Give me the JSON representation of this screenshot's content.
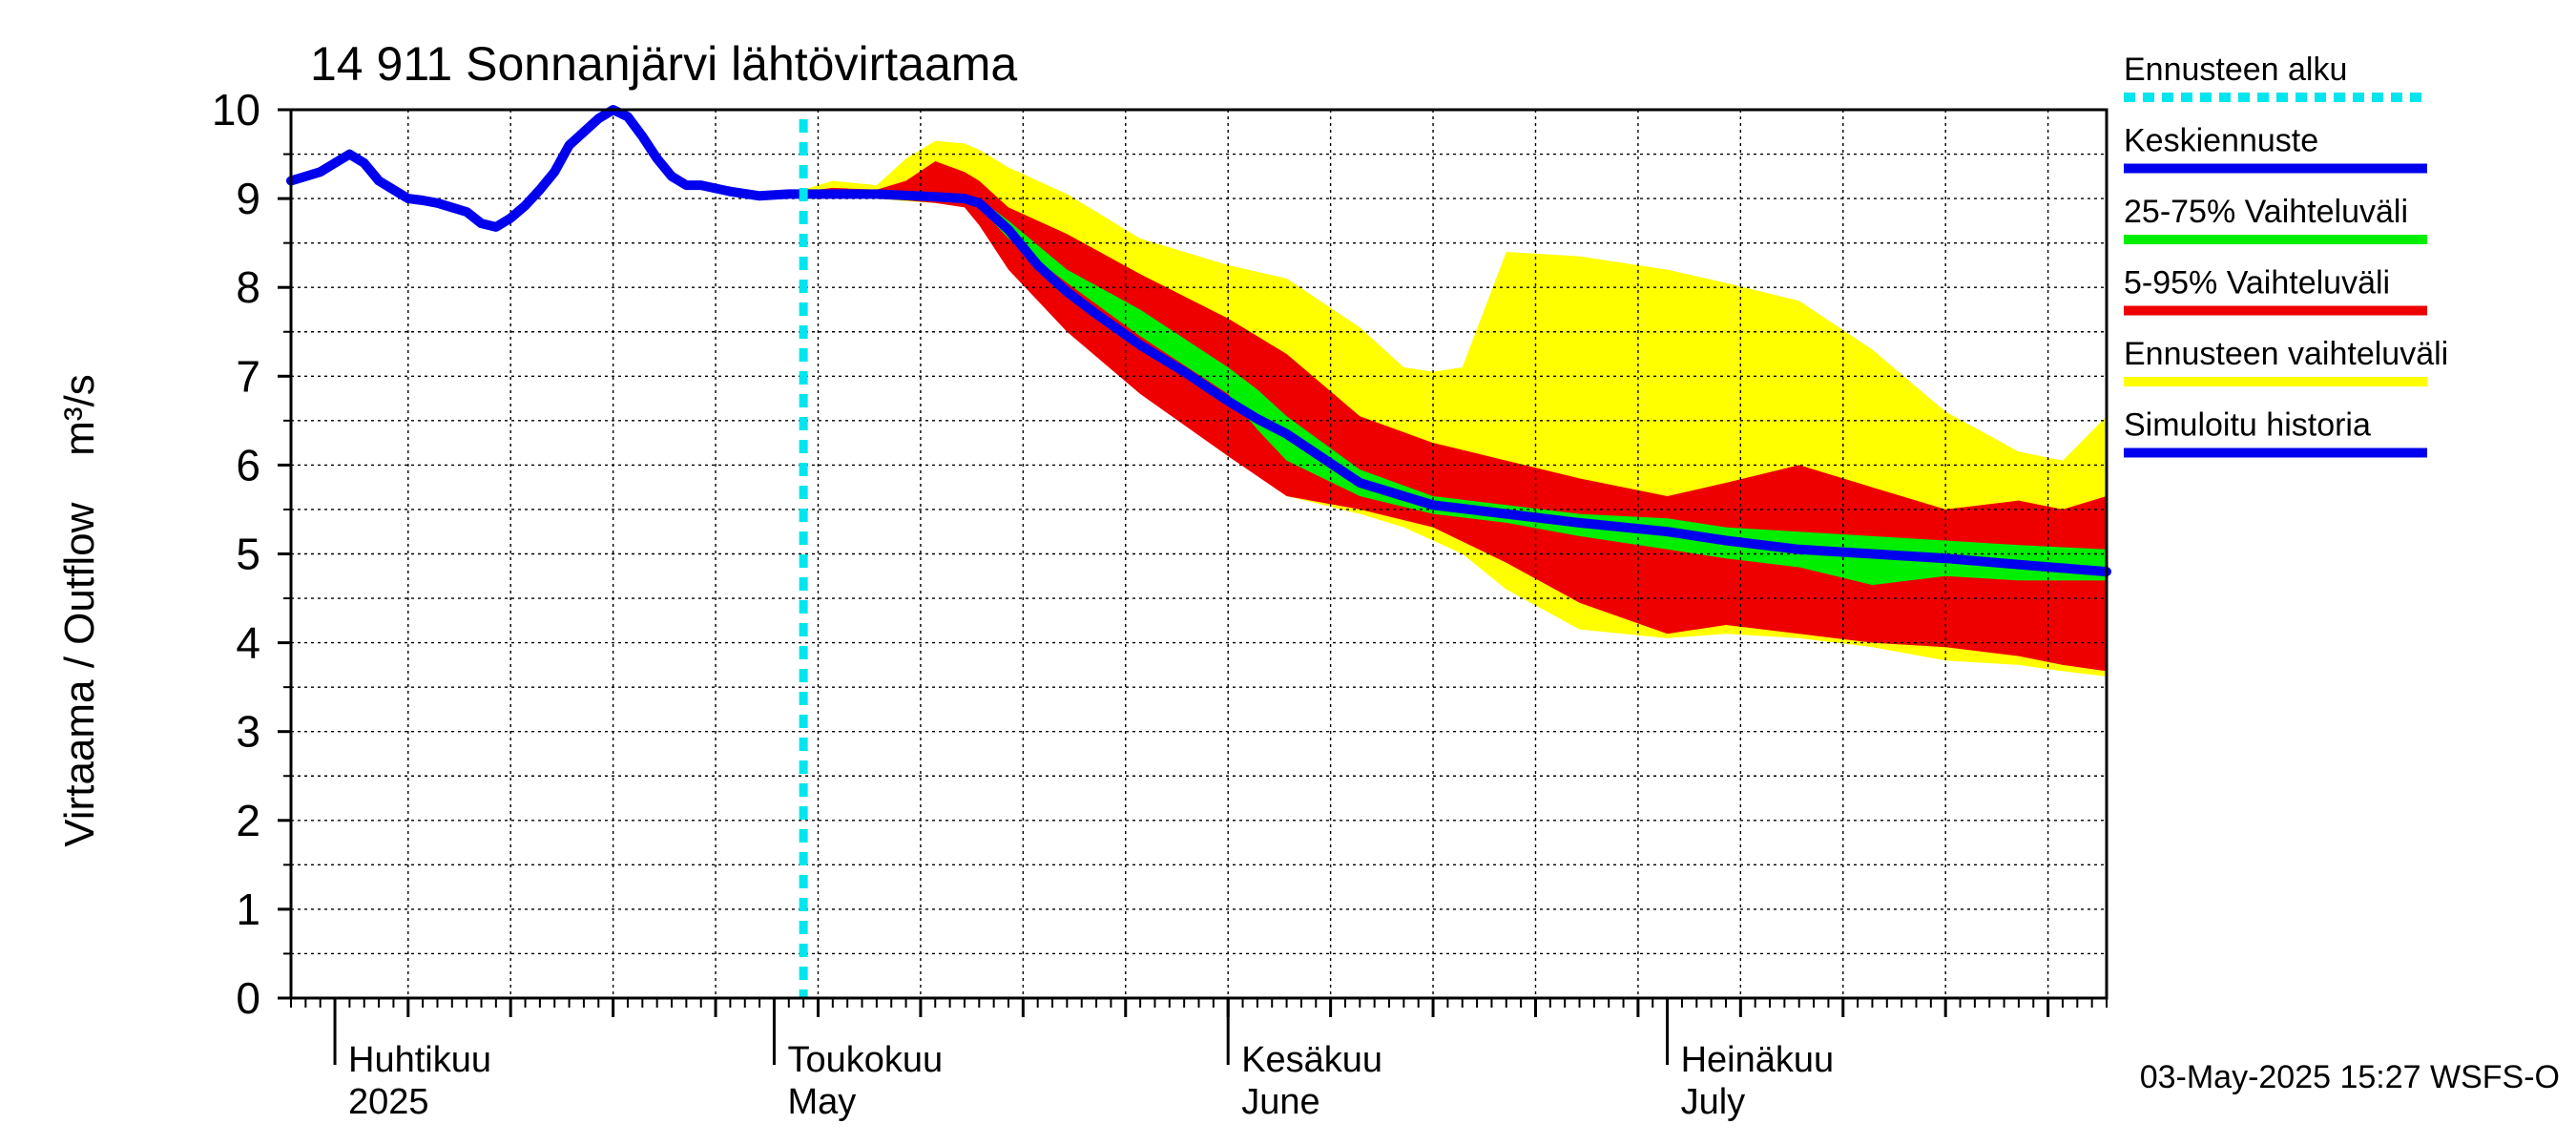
{
  "chart_data": {
    "type": "area",
    "title": "14 911 Sonnanjärvi lähtövirtaama",
    "ylabel": "Virtaama / Outflow    m³/s",
    "ylim": [
      0,
      10
    ],
    "yticks": [
      "0",
      "1",
      "2",
      "3",
      "4",
      "5",
      "6",
      "7",
      "8",
      "9",
      "10"
    ],
    "xlim": [
      "2025-03-29",
      "2025-07-31"
    ],
    "x_month_labels": [
      {
        "date": "2025-04-01",
        "fi": "Huhtikuu",
        "en": "2025"
      },
      {
        "date": "2025-05-01",
        "fi": "Toukokuu",
        "en": "May"
      },
      {
        "date": "2025-06-01",
        "fi": "Kesäkuu",
        "en": "June"
      },
      {
        "date": "2025-07-01",
        "fi": "Heinäkuu",
        "en": "July"
      }
    ],
    "grid": true,
    "legend_placement": "right",
    "forecast_start": "2025-05-03",
    "timestamp": "03-May-2025 15:27 WSFS-O",
    "legend": [
      {
        "label": "Ennusteen alku",
        "color": "#00e5ee",
        "style": "dashed"
      },
      {
        "label": "Keskiennuste",
        "color": "#0000ee",
        "style": "solid"
      },
      {
        "label": "25-75% Vaihteluväli",
        "color": "#00ee00",
        "style": "solid"
      },
      {
        "label": "5-95% Vaihteluväli",
        "color": "#ee0000",
        "style": "solid"
      },
      {
        "label": "Ennusteen vaihteluväli",
        "color": "#ffff00",
        "style": "solid"
      },
      {
        "label": "Simuloitu historia",
        "color": "#0000ee",
        "style": "solid"
      }
    ],
    "colors": {
      "history": "#0000ee",
      "median": "#0000ee",
      "band_25_75": "#00ee00",
      "band_5_95": "#ee0000",
      "band_full": "#ffff00",
      "forecast_start": "#00e5ee"
    },
    "series": [
      {
        "name": "Simuloitu historia",
        "x": [
          "2025-03-29",
          "2025-03-31",
          "2025-04-01",
          "2025-04-02",
          "2025-04-03",
          "2025-04-04",
          "2025-04-05",
          "2025-04-06",
          "2025-04-07",
          "2025-04-08",
          "2025-04-09",
          "2025-04-10",
          "2025-04-11",
          "2025-04-12",
          "2025-04-13",
          "2025-04-14",
          "2025-04-15",
          "2025-04-16",
          "2025-04-17",
          "2025-04-18",
          "2025-04-19",
          "2025-04-20",
          "2025-04-21",
          "2025-04-22",
          "2025-04-23",
          "2025-04-24",
          "2025-04-25",
          "2025-04-26",
          "2025-04-28",
          "2025-04-30",
          "2025-05-02",
          "2025-05-03"
        ],
        "y": [
          9.2,
          9.3,
          9.4,
          9.5,
          9.4,
          9.2,
          9.1,
          9.0,
          8.98,
          8.95,
          8.9,
          8.85,
          8.72,
          8.68,
          8.78,
          8.92,
          9.1,
          9.3,
          9.6,
          9.75,
          9.9,
          10.0,
          9.92,
          9.7,
          9.45,
          9.25,
          9.15,
          9.15,
          9.08,
          9.03,
          9.05,
          9.05
        ]
      },
      {
        "name": "Keskiennuste",
        "x": [
          "2025-05-03",
          "2025-05-05",
          "2025-05-08",
          "2025-05-12",
          "2025-05-14",
          "2025-05-15",
          "2025-05-17",
          "2025-05-19",
          "2025-05-21",
          "2025-05-23",
          "2025-05-26",
          "2025-05-29",
          "2025-06-01",
          "2025-06-03",
          "2025-06-05",
          "2025-06-10",
          "2025-06-15",
          "2025-06-20",
          "2025-06-25",
          "2025-07-01",
          "2025-07-05",
          "2025-07-10",
          "2025-07-15",
          "2025-07-20",
          "2025-07-25",
          "2025-07-31"
        ],
        "y": [
          9.05,
          9.05,
          9.05,
          9.02,
          9.0,
          8.95,
          8.65,
          8.25,
          7.95,
          7.7,
          7.35,
          7.05,
          6.72,
          6.52,
          6.35,
          5.8,
          5.55,
          5.45,
          5.35,
          5.25,
          5.15,
          5.05,
          5.0,
          4.95,
          4.88,
          4.8
        ]
      }
    ],
    "bands": [
      {
        "name": "Ennusteen vaihteluväli",
        "x": [
          "2025-05-03",
          "2025-05-05",
          "2025-05-08",
          "2025-05-10",
          "2025-05-12",
          "2025-05-14",
          "2025-05-15",
          "2025-05-17",
          "2025-05-21",
          "2025-05-26",
          "2025-06-01",
          "2025-06-05",
          "2025-06-10",
          "2025-06-13",
          "2025-06-15",
          "2025-06-17",
          "2025-06-20",
          "2025-06-25",
          "2025-07-01",
          "2025-07-05",
          "2025-07-10",
          "2025-07-15",
          "2025-07-20",
          "2025-07-25",
          "2025-07-28",
          "2025-07-31"
        ],
        "low": [
          9.0,
          9.02,
          9.0,
          8.97,
          8.95,
          8.92,
          8.75,
          8.3,
          7.65,
          6.95,
          6.25,
          5.65,
          5.45,
          5.3,
          5.15,
          5.0,
          4.6,
          4.15,
          4.05,
          4.1,
          4.05,
          3.95,
          3.8,
          3.75,
          3.68,
          3.62
        ],
        "high": [
          9.1,
          9.2,
          9.15,
          9.45,
          9.65,
          9.62,
          9.55,
          9.35,
          9.05,
          8.55,
          8.25,
          8.1,
          7.55,
          7.1,
          7.05,
          7.1,
          8.4,
          8.35,
          8.2,
          8.05,
          7.85,
          7.3,
          6.6,
          6.15,
          6.05,
          6.55
        ]
      },
      {
        "name": "5-95% Vaihteluväli",
        "x": [
          "2025-05-03",
          "2025-05-05",
          "2025-05-08",
          "2025-05-10",
          "2025-05-12",
          "2025-05-14",
          "2025-05-15",
          "2025-05-17",
          "2025-05-21",
          "2025-05-26",
          "2025-06-01",
          "2025-06-05",
          "2025-06-10",
          "2025-06-15",
          "2025-06-20",
          "2025-06-25",
          "2025-07-01",
          "2025-07-05",
          "2025-07-10",
          "2025-07-15",
          "2025-07-20",
          "2025-07-25",
          "2025-07-28",
          "2025-07-31"
        ],
        "low": [
          9.02,
          9.02,
          9.0,
          8.98,
          8.95,
          8.9,
          8.7,
          8.2,
          7.5,
          6.8,
          6.1,
          5.65,
          5.5,
          5.3,
          4.9,
          4.45,
          4.1,
          4.2,
          4.1,
          4.0,
          3.95,
          3.85,
          3.75,
          3.68
        ],
        "high": [
          9.08,
          9.12,
          9.1,
          9.2,
          9.42,
          9.3,
          9.2,
          8.9,
          8.6,
          8.15,
          7.65,
          7.25,
          6.55,
          6.25,
          6.05,
          5.85,
          5.65,
          5.8,
          6.0,
          5.75,
          5.5,
          5.6,
          5.5,
          5.65
        ]
      },
      {
        "name": "25-75% Vaihteluväli",
        "x": [
          "2025-05-14",
          "2025-05-15",
          "2025-05-17",
          "2025-05-21",
          "2025-05-26",
          "2025-06-01",
          "2025-06-03",
          "2025-06-05",
          "2025-06-10",
          "2025-06-15",
          "2025-06-20",
          "2025-06-25",
          "2025-07-01",
          "2025-07-05",
          "2025-07-10",
          "2025-07-15",
          "2025-07-20",
          "2025-07-25",
          "2025-07-31"
        ],
        "low": [
          8.97,
          8.9,
          8.55,
          8.05,
          7.45,
          6.8,
          6.4,
          6.05,
          5.65,
          5.45,
          5.35,
          5.2,
          5.05,
          4.95,
          4.85,
          4.65,
          4.75,
          4.7,
          4.7
        ],
        "high": [
          9.03,
          9.0,
          8.75,
          8.2,
          7.75,
          7.1,
          6.85,
          6.55,
          5.95,
          5.65,
          5.55,
          5.45,
          5.4,
          5.3,
          5.25,
          5.2,
          5.15,
          5.1,
          5.05
        ]
      }
    ]
  }
}
